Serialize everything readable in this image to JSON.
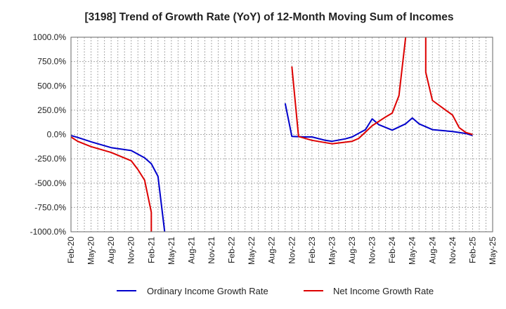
{
  "chart_data": {
    "type": "line",
    "title": "[3198]  Trend of Growth Rate (YoY) of 12-Month Moving Sum of Incomes",
    "xlabel": "",
    "ylabel": "",
    "ylim": [
      -1000,
      1000
    ],
    "y_ticks": [
      1000,
      750,
      500,
      250,
      0,
      -250,
      -500,
      -750,
      -1000
    ],
    "y_tick_labels": [
      "1000.0%",
      "750.0%",
      "500.0%",
      "250.0%",
      "0.0%",
      "-250.0%",
      "-500.0%",
      "-750.0%",
      "-1000.0%"
    ],
    "x_tick_labels": [
      "Feb-20",
      "May-20",
      "Aug-20",
      "Nov-20",
      "Feb-21",
      "May-21",
      "Aug-21",
      "Nov-21",
      "Feb-22",
      "May-22",
      "Aug-22",
      "Nov-22",
      "Feb-23",
      "May-23",
      "Aug-23",
      "Nov-23",
      "Feb-24",
      "May-24",
      "Aug-24",
      "Nov-24",
      "Feb-25",
      "May-25"
    ],
    "x_start": "Feb-20",
    "x_end": "May-25",
    "grid": true,
    "legend_position": "bottom",
    "series": [
      {
        "name": "Ordinary Income Growth Rate",
        "color": "#0000cc",
        "points": [
          [
            "Feb-20",
            -10
          ],
          [
            "Mar-20",
            -30
          ],
          [
            "May-20",
            -75
          ],
          [
            "Aug-20",
            -135
          ],
          [
            "Nov-20",
            -165
          ],
          [
            "Jan-21",
            -240
          ],
          [
            "Feb-21",
            -300
          ],
          [
            "Mar-21",
            -430
          ],
          [
            "Apr-21",
            -1000
          ],
          null,
          [
            "Oct-22",
            320
          ],
          [
            "Nov-22",
            -20
          ],
          [
            "Jan-23",
            -25
          ],
          [
            "Feb-23",
            -25
          ],
          [
            "Apr-23",
            -60
          ],
          [
            "May-23",
            -70
          ],
          [
            "Jul-23",
            -45
          ],
          [
            "Aug-23",
            -25
          ],
          [
            "Oct-23",
            50
          ],
          [
            "Nov-23",
            160
          ],
          [
            "Dec-23",
            100
          ],
          [
            "Feb-24",
            45
          ],
          [
            "Apr-24",
            110
          ],
          [
            "May-24",
            170
          ],
          [
            "Jun-24",
            110
          ],
          [
            "Aug-24",
            50
          ],
          [
            "Nov-24",
            30
          ],
          [
            "Jan-25",
            10
          ],
          [
            "Feb-25",
            -10
          ]
        ]
      },
      {
        "name": "Net Income Growth Rate",
        "color": "#dd0000",
        "points": [
          [
            "Feb-20",
            -25
          ],
          [
            "Mar-20",
            -70
          ],
          [
            "May-20",
            -125
          ],
          [
            "Aug-20",
            -185
          ],
          [
            "Nov-20",
            -270
          ],
          [
            "Dec-20",
            -360
          ],
          [
            "Jan-21",
            -470
          ],
          [
            "Feb-21",
            -800
          ],
          [
            "Feb-21",
            -1000
          ],
          null,
          [
            "Nov-22",
            700
          ],
          [
            "Dec-22",
            -20
          ],
          [
            "Feb-23",
            -60
          ],
          [
            "May-23",
            -95
          ],
          [
            "Aug-23",
            -70
          ],
          [
            "Sep-23",
            -40
          ],
          [
            "Nov-23",
            90
          ],
          [
            "Jan-24",
            180
          ],
          [
            "Feb-24",
            220
          ],
          [
            "Mar-24",
            400
          ],
          [
            "Apr-24",
            1000
          ],
          null,
          [
            "Jul-24",
            1000
          ],
          [
            "Jul-24",
            640
          ],
          [
            "Aug-24",
            350
          ],
          [
            "Oct-24",
            250
          ],
          [
            "Nov-24",
            200
          ],
          [
            "Dec-24",
            70
          ],
          [
            "Jan-25",
            20
          ],
          [
            "Feb-25",
            0
          ]
        ]
      }
    ]
  }
}
